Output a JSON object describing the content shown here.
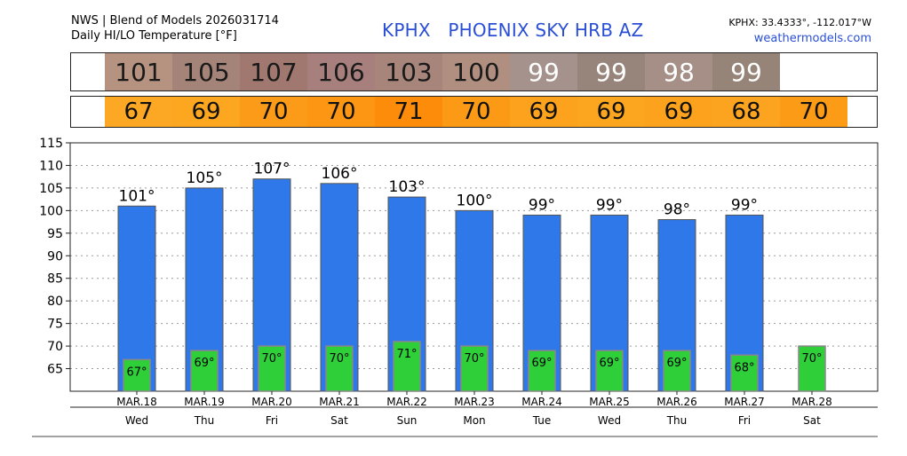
{
  "header": {
    "source_line1": "NWS | Blend of Models 2026031714",
    "source_line2": "Daily HI/LO Temperature [°F]",
    "station_title": "KPHX   PHOENIX SKY HRB AZ",
    "coords": "KPHX: 33.4333°, -112.017°W",
    "site": "weathermodels.com"
  },
  "colors": {
    "high_bar": "#2f78ea",
    "low_bar": "#2fcf3a",
    "hi_band": [
      "#b69281",
      "#a48479",
      "#a0786f",
      "#a77f7c",
      "#a7857a",
      "#b08f80",
      "#a6928c",
      "#97857b",
      "#a58f87",
      "#958477"
    ],
    "lo_band": [
      "#fda824",
      "#fda721",
      "#fc9b17",
      "#fc9613",
      "#fc8c09",
      "#fc9a15",
      "#fca21d",
      "#fca51f",
      "#fca21c",
      "#fca41f",
      "#fc9b16"
    ]
  },
  "chart_data": {
    "type": "bar",
    "title": "Daily HI/LO Temperature [°F]",
    "categories": [
      "MAR.18",
      "MAR.19",
      "MAR.20",
      "MAR.21",
      "MAR.22",
      "MAR.23",
      "MAR.24",
      "MAR.25",
      "MAR.26",
      "MAR.27",
      "MAR.28"
    ],
    "weekdays": [
      "Wed",
      "Thu",
      "Fri",
      "Sat",
      "Sun",
      "Mon",
      "Tue",
      "Wed",
      "Thu",
      "Fri",
      "Sat"
    ],
    "series": [
      {
        "name": "HI",
        "values": [
          101,
          105,
          107,
          106,
          103,
          100,
          99,
          99,
          98,
          99,
          null
        ],
        "labels": [
          "101°",
          "105°",
          "107°",
          "106°",
          "103°",
          "100°",
          "99°",
          "99°",
          "98°",
          "99°",
          ""
        ]
      },
      {
        "name": "LO",
        "values": [
          67,
          69,
          70,
          70,
          71,
          70,
          69,
          69,
          69,
          68,
          70
        ],
        "labels": [
          "67°",
          "69°",
          "70°",
          "70°",
          "71°",
          "70°",
          "69°",
          "69°",
          "69°",
          "68°",
          "70°"
        ]
      }
    ],
    "hi_band_values": [
      "101",
      "105",
      "107",
      "106",
      "103",
      "100",
      "99",
      "99",
      "98",
      "99"
    ],
    "lo_band_values": [
      "67",
      "69",
      "70",
      "70",
      "71",
      "70",
      "69",
      "69",
      "69",
      "68",
      "70"
    ],
    "ylim": [
      60,
      115
    ],
    "yticks": [
      "65",
      "70",
      "75",
      "80",
      "85",
      "90",
      "95",
      "100",
      "105",
      "110",
      "115"
    ],
    "grid": true,
    "legend": "none"
  }
}
